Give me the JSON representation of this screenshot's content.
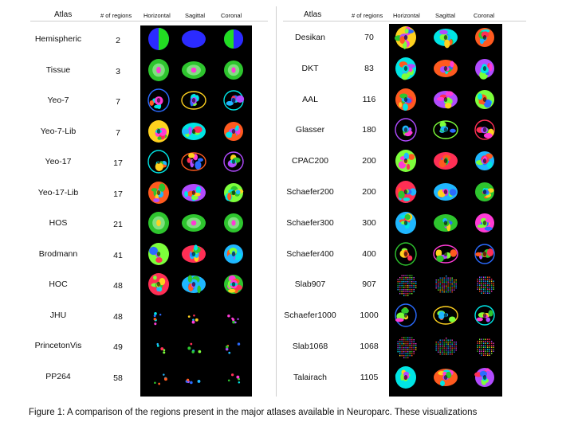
{
  "headers": {
    "atlas": "Atlas",
    "regions": "# of regions",
    "horizontal": "Horizontal",
    "sagittal": "Sagittal",
    "coronal": "Coronal"
  },
  "left_atlases": [
    {
      "name": "Hemispheric",
      "count": "2",
      "style": "hemi"
    },
    {
      "name": "Tissue",
      "count": "3",
      "style": "tissue"
    },
    {
      "name": "Yeo-7",
      "count": "7",
      "style": "sparse"
    },
    {
      "name": "Yeo-7-Lib",
      "count": "7",
      "style": "parcel"
    },
    {
      "name": "Yeo-17",
      "count": "17",
      "style": "sparse"
    },
    {
      "name": "Yeo-17-Lib",
      "count": "17",
      "style": "parcel"
    },
    {
      "name": "HOS",
      "count": "21",
      "style": "tissue"
    },
    {
      "name": "Brodmann",
      "count": "41",
      "style": "parcel"
    },
    {
      "name": "HOC",
      "count": "48",
      "style": "parcel"
    },
    {
      "name": "JHU",
      "count": "48",
      "style": "tiny"
    },
    {
      "name": "PrincetonVis",
      "count": "49",
      "style": "dots"
    },
    {
      "name": "PP264",
      "count": "58",
      "style": "dots"
    }
  ],
  "right_atlases": [
    {
      "name": "Desikan",
      "count": "70",
      "style": "parcel"
    },
    {
      "name": "DKT",
      "count": "83",
      "style": "parcel"
    },
    {
      "name": "AAL",
      "count": "116",
      "style": "parcel"
    },
    {
      "name": "Glasser",
      "count": "180",
      "style": "sparse"
    },
    {
      "name": "CPAC200",
      "count": "200",
      "style": "parcel"
    },
    {
      "name": "Schaefer200",
      "count": "200",
      "style": "parcel"
    },
    {
      "name": "Schaefer300",
      "count": "300",
      "style": "parcel"
    },
    {
      "name": "Schaefer400",
      "count": "400",
      "style": "sparse"
    },
    {
      "name": "Slab907",
      "count": "907",
      "style": "grid"
    },
    {
      "name": "Schaefer1000",
      "count": "1000",
      "style": "sparse"
    },
    {
      "name": "Slab1068",
      "count": "1068",
      "style": "grid"
    },
    {
      "name": "Talairach",
      "count": "1105",
      "style": "parcel"
    }
  ],
  "palette": [
    "#2ec52e",
    "#ff3bd6",
    "#2b6bff",
    "#ffd21f",
    "#00e5e5",
    "#ff5a1f",
    "#b14bff",
    "#7dff3b",
    "#ff2f55",
    "#1fb7ff"
  ],
  "caption": "Figure 1: A comparison of the regions present in the major atlases available in Neuroparc. These visualizations"
}
